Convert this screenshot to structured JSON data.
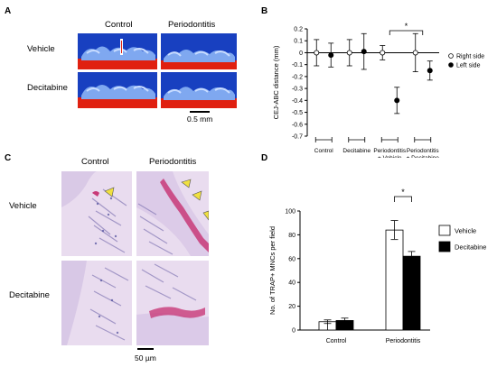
{
  "panels": {
    "A": {
      "letter": "A",
      "col_labels": [
        "Control",
        "Periodontitis"
      ],
      "row_labels": [
        "Vehicle",
        "Decitabine"
      ],
      "scale_bar": "0.5 mm"
    },
    "C": {
      "letter": "C",
      "col_labels": [
        "Control",
        "Periodontitis"
      ],
      "row_labels": [
        "Vehicle",
        "Decitabine"
      ],
      "scale_bar": "50 µm"
    }
  },
  "colors": {
    "ct_blue": "#1840c0",
    "ct_red": "#e02010",
    "stain_pink": "#c83a78",
    "stain_bg": "#e8d8ee",
    "arrowhead": "#f0e040"
  },
  "chart_data": [
    {
      "panel": "B",
      "type": "scatter",
      "ylabel": "CEJ-ABC distance (mm)",
      "ylim": [
        -0.7,
        0.2
      ],
      "yticks": [
        0.2,
        0.1,
        0.0,
        -0.1,
        -0.2,
        -0.3,
        -0.4,
        -0.5,
        -0.6,
        -0.7
      ],
      "ytick_labels": [
        "0.2",
        "0.1",
        "0",
        "-0.1",
        "-0.2",
        "-0.3",
        "-0.4",
        "-0.5",
        "-0.6",
        "-0.7"
      ],
      "categories": [
        "Control",
        "Decitabine",
        "Periodontitis\n+ Vehicle",
        "Periodontitis\n+ Decitabine"
      ],
      "series": [
        {
          "name": "Right side",
          "marker": "open",
          "values": [
            0.0,
            0.0,
            0.0,
            0.0
          ],
          "error": [
            0.11,
            0.11,
            0.06,
            0.16
          ]
        },
        {
          "name": "Left side",
          "marker": "filled",
          "values": [
            -0.02,
            0.01,
            -0.4,
            -0.15
          ],
          "error": [
            0.1,
            0.15,
            0.11,
            0.08
          ]
        }
      ],
      "significance": [
        {
          "between": [
            2,
            3
          ],
          "label": "*"
        }
      ],
      "legend": "right"
    },
    {
      "panel": "D",
      "type": "bar",
      "ylabel": "No. of TRAP+ MNCs per field",
      "ylim": [
        0,
        100
      ],
      "yticks": [
        0,
        20,
        40,
        60,
        80,
        100
      ],
      "categories": [
        "Control",
        "Periodontitis"
      ],
      "series": [
        {
          "name": "Vehicle",
          "fill": "#ffffff",
          "values": [
            7,
            84
          ],
          "error": [
            1.5,
            8
          ]
        },
        {
          "name": "Decitabine",
          "fill": "#000000",
          "values": [
            8,
            62
          ],
          "error": [
            2,
            4
          ]
        }
      ],
      "significance": [
        {
          "between": [
            "Periodontitis/Vehicle",
            "Periodontitis/Decitabine"
          ],
          "label": "*"
        }
      ],
      "legend": "right"
    }
  ]
}
